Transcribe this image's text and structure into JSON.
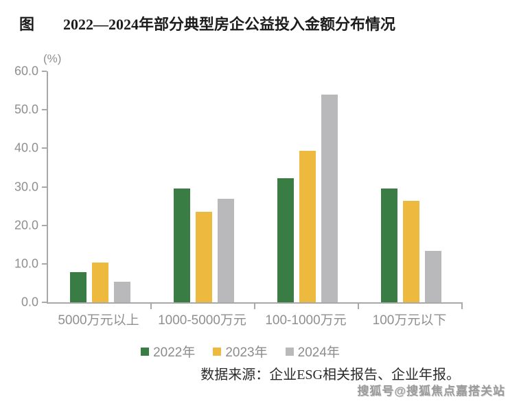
{
  "header": {
    "prefix": "图",
    "title": "2022—2024年部分典型房企公益投入金额分布情况"
  },
  "chart_data": {
    "type": "bar",
    "title": "2022—2024年部分典型房企公益投入金额分布情况",
    "unit_label": "(%)",
    "categories": [
      "5000万元以上",
      "1000-5000万元",
      "100-1000万元",
      "100万元以下"
    ],
    "series": [
      {
        "name": "2022年",
        "color": "#3A7D44",
        "values": [
          7.9,
          29.5,
          32.3,
          29.5
        ]
      },
      {
        "name": "2023年",
        "color": "#EDB93F",
        "values": [
          10.3,
          23.5,
          39.3,
          26.3
        ]
      },
      {
        "name": "2024年",
        "color": "#B9B9BC",
        "values": [
          5.3,
          26.8,
          53.9,
          13.3
        ]
      }
    ],
    "ylim": [
      0,
      60
    ],
    "yticks": [
      0,
      10,
      20,
      30,
      40,
      50,
      60
    ],
    "ytick_labels": [
      "0.0",
      "10.0",
      "20.0",
      "30.0",
      "40.0",
      "50.0",
      "60.0"
    ],
    "xlabel": "",
    "ylabel": "(%)",
    "grid": false,
    "legend_position": "bottom"
  },
  "footer": {
    "source": "数据来源：企业ESG相关报告、企业年报。",
    "watermark": "搜狐号@搜狐焦点嘉搭关站"
  },
  "colors": {
    "axis": "#a8a8a8",
    "axis_text": "#8f8f8f",
    "title_text": "#1c1c1c"
  }
}
